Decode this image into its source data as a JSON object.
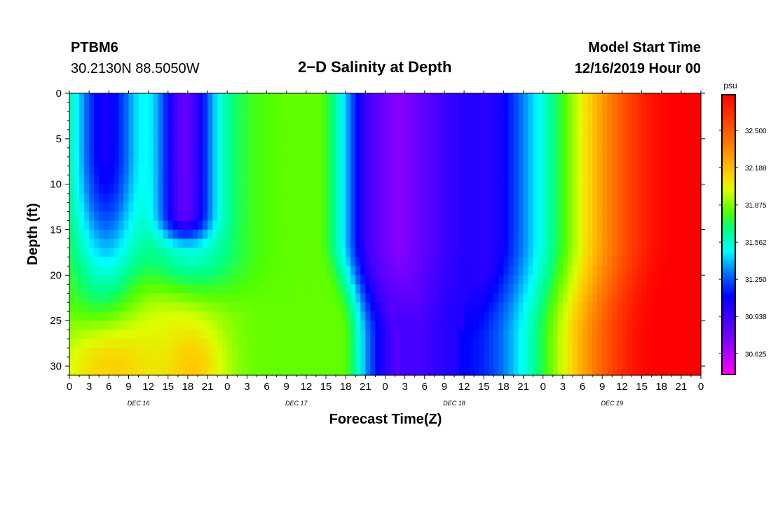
{
  "header": {
    "station_name": "PTBM6",
    "station_coords": "30.2130N 88.5050W",
    "title": "2−D Salinity at Depth",
    "start_label": "Model Start Time",
    "start_value": "12/16/2019 Hour 00"
  },
  "chart_data": {
    "type": "heatmap",
    "title": "2−D Salinity at Depth",
    "xlabel": "Forecast Time(Z)",
    "ylabel": "Depth (ft)",
    "x_hours_range": [
      0,
      96
    ],
    "x_tick_labels": [
      "0",
      "3",
      "6",
      "9",
      "12",
      "15",
      "18",
      "21",
      "0",
      "3",
      "6",
      "9",
      "12",
      "15",
      "18",
      "21",
      "0",
      "3",
      "6",
      "9",
      "12",
      "15",
      "18",
      "21",
      "0",
      "3",
      "6",
      "9",
      "12",
      "15",
      "18",
      "21",
      "0"
    ],
    "day_labels": [
      "DEC 16",
      "DEC 17",
      "DEC 18",
      "DEC 19"
    ],
    "y_range": [
      0,
      31
    ],
    "y_ticks": [
      0,
      5,
      10,
      15,
      20,
      25,
      30
    ],
    "colorbar": {
      "unit": "psu",
      "range": [
        30.45,
        32.8
      ],
      "tick_labels": [
        "32.500",
        "32.188",
        "31.875",
        "31.562",
        "31.250",
        "30.938",
        "30.625"
      ],
      "tick_values": [
        32.5,
        32.188,
        31.875,
        31.562,
        31.25,
        30.938,
        30.625
      ]
    },
    "grid": false,
    "legend": "colorbar-right"
  }
}
